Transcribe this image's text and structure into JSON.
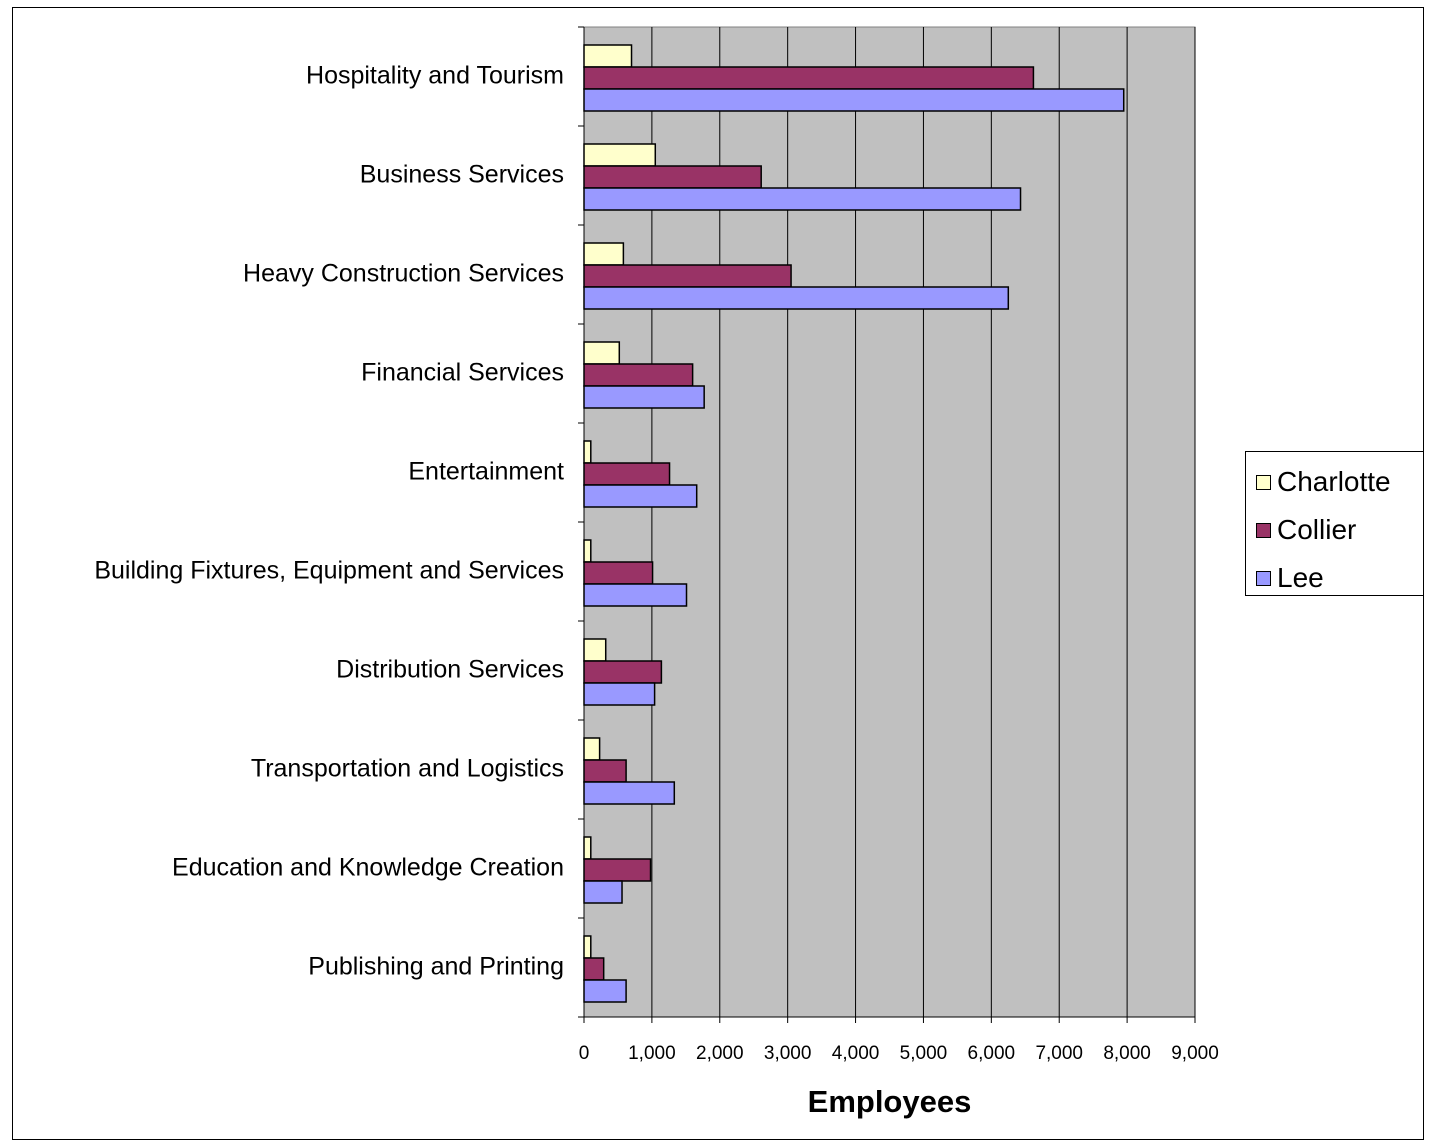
{
  "chart_data": {
    "type": "bar",
    "orientation": "horizontal",
    "categories": [
      "Hospitality and Tourism",
      "Business Services",
      "Heavy Construction Services",
      "Financial Services",
      "Entertainment",
      "Building Fixtures, Equipment and Services",
      "Distribution Services",
      "Transportation and Logistics",
      "Education and Knowledge Creation",
      "Publishing and Printing"
    ],
    "series": [
      {
        "name": "Charlotte",
        "color": "#FFFFCC",
        "values": [
          700,
          1050,
          580,
          520,
          100,
          100,
          320,
          230,
          100,
          100
        ]
      },
      {
        "name": "Collier",
        "color": "#993366",
        "values": [
          6620,
          2610,
          3050,
          1600,
          1260,
          1010,
          1140,
          620,
          980,
          290
        ]
      },
      {
        "name": "Lee",
        "color": "#9999FF",
        "values": [
          7950,
          6430,
          6250,
          1770,
          1660,
          1510,
          1040,
          1330,
          560,
          620
        ]
      }
    ],
    "xticks": [
      "0",
      "1,000",
      "2,000",
      "3,000",
      "4,000",
      "5,000",
      "6,000",
      "7,000",
      "8,000",
      "9,000"
    ],
    "xlim": [
      0,
      9000
    ],
    "xlabel": "Employees",
    "ylabel": "",
    "title": "",
    "grid": true,
    "plot_background": "#C0C0C0",
    "legend_position": "right"
  }
}
